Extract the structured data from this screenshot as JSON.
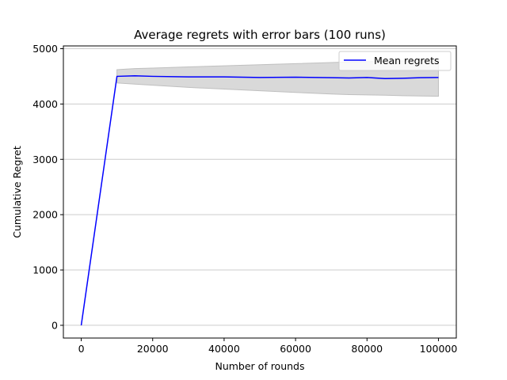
{
  "chart_data": {
    "type": "line",
    "title": "Average regrets with error bars (100 runs)",
    "xlabel": "Number of rounds",
    "ylabel": "Cumulative Regret",
    "xlim": [
      -5000,
      105000
    ],
    "ylim": [
      -230,
      5050
    ],
    "x_ticks": [
      0,
      20000,
      40000,
      60000,
      80000,
      100000
    ],
    "y_ticks": [
      0,
      1000,
      2000,
      3000,
      4000,
      5000
    ],
    "grid": "horizontal",
    "legend_position": "top-right",
    "series": [
      {
        "name": "Mean regrets",
        "color": "#0000ff",
        "x": [
          0,
          10000,
          15000,
          20000,
          30000,
          40000,
          50000,
          60000,
          70000,
          75000,
          80000,
          85000,
          90000,
          95000,
          100000
        ],
        "values": [
          0,
          4500,
          4510,
          4500,
          4490,
          4490,
          4480,
          4485,
          4475,
          4470,
          4480,
          4460,
          4465,
          4475,
          4480
        ]
      }
    ],
    "error_band": {
      "color": "#d9d9d9",
      "edge_color": "#bfbfbf",
      "x": [
        10000,
        15000,
        20000,
        30000,
        40000,
        50000,
        60000,
        70000,
        75000,
        80000,
        85000,
        90000,
        95000,
        100000
      ],
      "upper": [
        4620,
        4640,
        4650,
        4670,
        4690,
        4710,
        4730,
        4750,
        4760,
        4765,
        4770,
        4780,
        4785,
        4790
      ],
      "lower": [
        4380,
        4360,
        4340,
        4300,
        4270,
        4240,
        4210,
        4180,
        4170,
        4165,
        4160,
        4150,
        4145,
        4140
      ]
    }
  }
}
